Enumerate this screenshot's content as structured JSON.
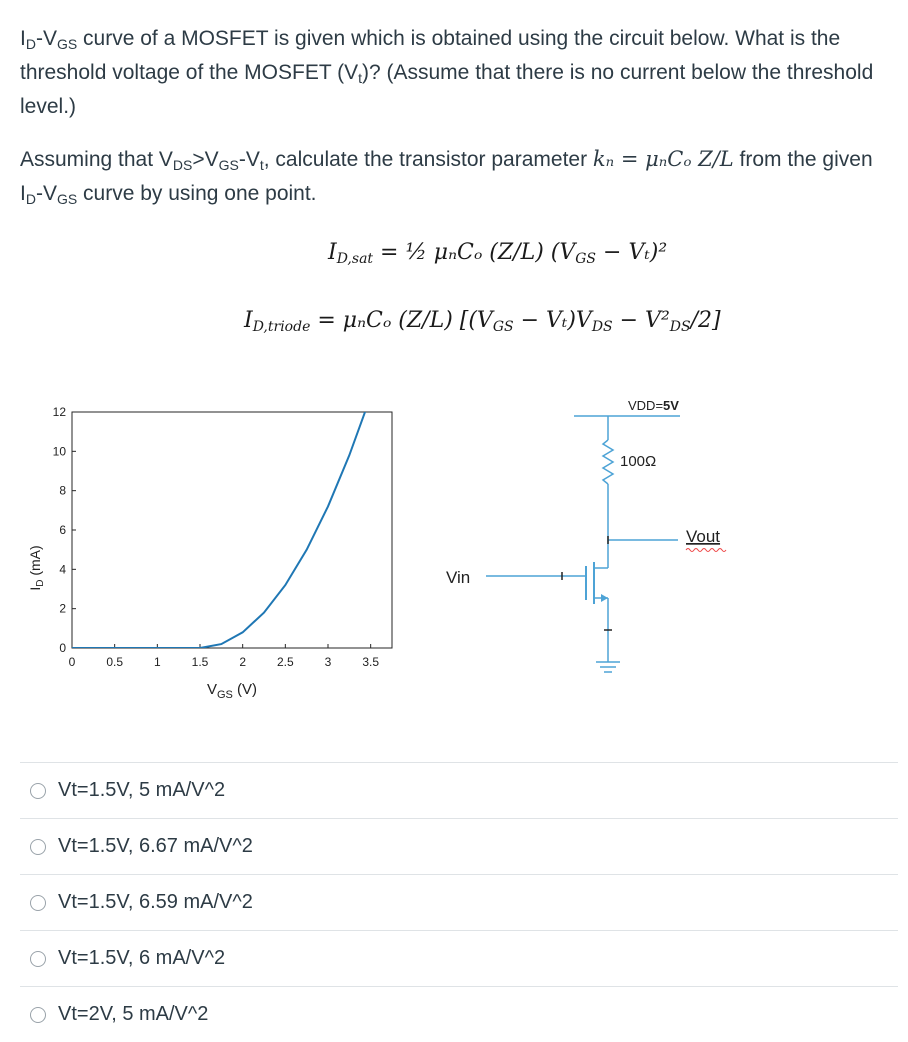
{
  "question": {
    "p1_a": "I",
    "p1_a_sub": "D",
    "p1_b": "-V",
    "p1_b_sub": "GS",
    "p1_c": " curve of a MOSFET is given which is obtained using the circuit below. What is the threshold voltage of the MOSFET (V",
    "p1_c_sub": "t",
    "p1_d": ")? (Assume that there is no current below the threshold level.)",
    "p2_a": "Assuming that V",
    "p2_a_sub": "DS",
    "p2_b": ">V",
    "p2_b_sub": "GS",
    "p2_c": "-V",
    "p2_c_sub": "t",
    "p2_d": ", calculate the transistor parameter ",
    "p2_math": "kₙ = μₙCₒ Z/L",
    "p2_e": " from the given I",
    "p2_e_sub": "D",
    "p2_f": "-V",
    "p2_f_sub": "GS",
    "p2_g": " curve by using one point."
  },
  "equations": {
    "sat_lhs": "I",
    "sat_lhs_sub": "D,sat",
    "sat_rhs": "= ½ μₙCₒ (Z/L) (V",
    "sat_rhs_sub": "GS",
    "sat_rhs_end": " − Vₜ)²",
    "triode_lhs": "I",
    "triode_lhs_sub": "D,triode",
    "triode_rhs": "= μₙCₒ (Z/L) [(V",
    "triode_rhs_sub": "GS",
    "triode_rhs_mid": " − Vₜ)V",
    "triode_rhs_sub2": "DS",
    "triode_rhs_end": " − V²",
    "triode_rhs_sub3": "DS",
    "triode_rhs_tail": "/2]"
  },
  "chart_data": {
    "type": "line",
    "xlabel": "V",
    "xlabel_sub": "GS",
    "xlabel_unit": " (V)",
    "ylabel": "I",
    "ylabel_sub": "D",
    "ylabel_unit": " (mA)",
    "xlim": [
      0,
      3.75
    ],
    "ylim": [
      0,
      12
    ],
    "xticks": [
      0,
      0.5,
      1,
      1.5,
      2,
      2.5,
      3,
      3.5
    ],
    "xtick_labels": [
      "0",
      "0.5",
      "1",
      "1.5",
      "2",
      "2.5",
      "3",
      "3.5"
    ],
    "yticks": [
      0,
      2,
      4,
      6,
      8,
      10,
      12
    ],
    "ytick_labels": [
      "0",
      "2",
      "4",
      "6",
      "8",
      "10",
      "12"
    ],
    "series": [
      {
        "color": "#1f77b4",
        "x": [
          0,
          0.5,
          1.0,
          1.5,
          1.75,
          2.0,
          2.25,
          2.5,
          2.75,
          3.0,
          3.25,
          3.5,
          3.75
        ],
        "y": [
          0,
          0,
          0,
          0,
          0.2,
          0.8,
          1.8,
          3.2,
          5.0,
          7.2,
          9.8,
          12.8,
          16.2
        ]
      }
    ]
  },
  "circuit": {
    "vdd_label": "VDD=",
    "vdd_value": "5V",
    "resistor_label": "100Ω",
    "vout_label": "Vout",
    "vin_label": "Vin"
  },
  "options": [
    {
      "label": "Vt=1.5V, 5 mA/V^2"
    },
    {
      "label": "Vt=1.5V, 6.67 mA/V^2"
    },
    {
      "label": "Vt=1.5V, 6.59 mA/V^2"
    },
    {
      "label": "Vt=1.5V, 6 mA/V^2"
    },
    {
      "label": "Vt=2V, 5 mA/V^2"
    }
  ]
}
